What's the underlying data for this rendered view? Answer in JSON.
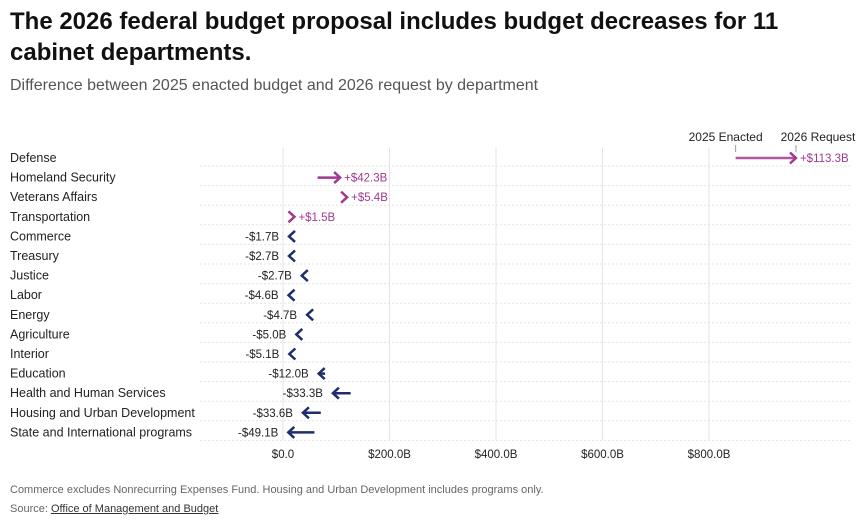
{
  "header": {
    "title": "The 2026 federal budget proposal includes budget decreases for 11 cabinet departments.",
    "subtitle": "Difference between 2025 enacted budget and 2026 request by department"
  },
  "colors": {
    "increase": "#a3388f",
    "decrease": "#1f2d6b",
    "grid": "#e3e3e3",
    "label": "#222222"
  },
  "chart_data": {
    "type": "bar",
    "orientation": "horizontal",
    "style": "arrow",
    "legend": {
      "start_label": "2025 Enacted",
      "end_label": "2026 Request",
      "placement": "top-right"
    },
    "x_ticks": [
      {
        "value": 0,
        "label": "$0.0"
      },
      {
        "value": 200,
        "label": "$200.0B"
      },
      {
        "value": 400,
        "label": "$400.0B"
      },
      {
        "value": 600,
        "label": "$600.0B"
      },
      {
        "value": 800,
        "label": "$800.0B"
      }
    ],
    "xlim": [
      0,
      1000
    ],
    "unit": "billions of dollars",
    "grid": true,
    "categories": [
      {
        "name": "Defense",
        "start": 850,
        "end": 963.3,
        "change_label": "+$113.3B"
      },
      {
        "name": "Homeland Security",
        "start": 65,
        "end": 107.3,
        "change_label": "+$42.3B"
      },
      {
        "name": "Veterans Affairs",
        "start": 115,
        "end": 120.4,
        "change_label": "+$5.4B"
      },
      {
        "name": "Transportation",
        "start": 20,
        "end": 21.5,
        "change_label": "+$1.5B"
      },
      {
        "name": "Commerce",
        "start": 13,
        "end": 11.3,
        "change_label": "-$1.7B"
      },
      {
        "name": "Treasury",
        "start": 14,
        "end": 11.3,
        "change_label": "-$2.7B"
      },
      {
        "name": "Justice",
        "start": 38,
        "end": 35.3,
        "change_label": "-$2.7B"
      },
      {
        "name": "Labor",
        "start": 15,
        "end": 10.4,
        "change_label": "-$4.6B"
      },
      {
        "name": "Energy",
        "start": 50,
        "end": 45.3,
        "change_label": "-$4.7B"
      },
      {
        "name": "Agriculture",
        "start": 30,
        "end": 25.0,
        "change_label": "-$5.0B"
      },
      {
        "name": "Interior",
        "start": 17,
        "end": 11.9,
        "change_label": "-$5.1B"
      },
      {
        "name": "Education",
        "start": 79,
        "end": 67.0,
        "change_label": "-$12.0B"
      },
      {
        "name": "Health and Human Services",
        "start": 127,
        "end": 93.7,
        "change_label": "-$33.3B"
      },
      {
        "name": "Housing and Urban Development",
        "start": 71,
        "end": 37.4,
        "change_label": "-$33.6B"
      },
      {
        "name": "State and International programs",
        "start": 59,
        "end": 9.9,
        "change_label": "-$49.1B"
      }
    ]
  },
  "footer": {
    "footnote": "Commerce excludes Nonrecurring Expenses Fund. Housing and Urban Development includes programs only.",
    "source_prefix": "Source: ",
    "source_link": "Office of Management and Budget"
  }
}
